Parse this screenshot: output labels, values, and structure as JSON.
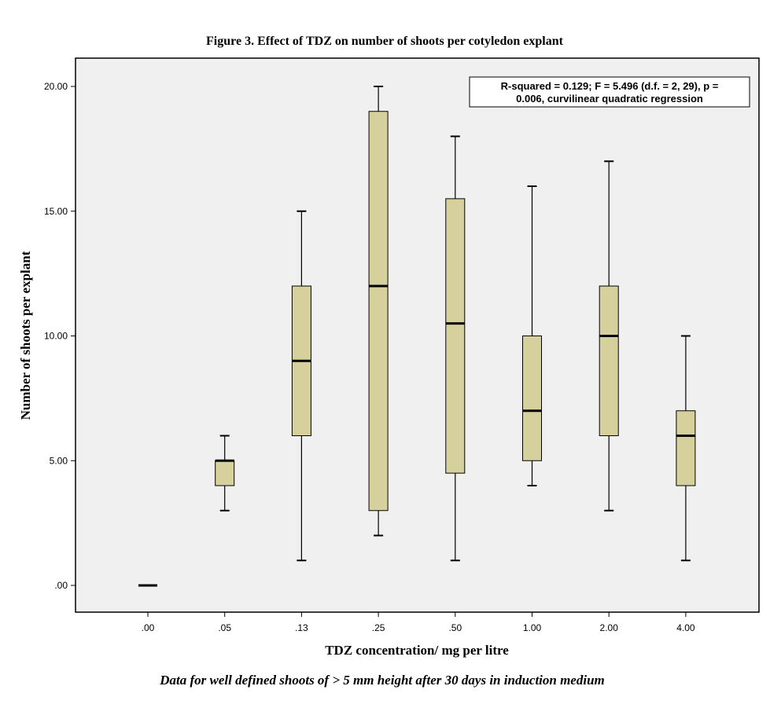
{
  "chart_data": {
    "type": "box",
    "title": "Figure 3. Effect of TDZ on number of shoots per cotyledon explant",
    "xlabel": "TDZ concentration/ mg per litre",
    "ylabel": "Number of shoots per explant",
    "caption": "Data for well defined shoots of > 5 mm height after 30 days in induction medium",
    "annotation": {
      "line1": "R-squared = 0.129; F = 5.496 (d.f. = 2, 29), p =",
      "line2": "0.006, curvilinear quadratic regression"
    },
    "ylim": [
      0,
      20
    ],
    "yticks": [
      {
        "value": 0,
        "label": ".00"
      },
      {
        "value": 5,
        "label": "5.00"
      },
      {
        "value": 10,
        "label": "10.00"
      },
      {
        "value": 15,
        "label": "15.00"
      },
      {
        "value": 20,
        "label": "20.00"
      }
    ],
    "categories": [
      ".00",
      ".05",
      ".13",
      ".25",
      ".50",
      "1.00",
      "2.00",
      "4.00"
    ],
    "boxes": [
      {
        "min": 0,
        "q1": 0,
        "median": 0,
        "q3": 0,
        "max": 0
      },
      {
        "min": 3,
        "q1": 4,
        "median": 5,
        "q3": 5,
        "max": 6
      },
      {
        "min": 1,
        "q1": 6,
        "median": 9,
        "q3": 12,
        "max": 15
      },
      {
        "min": 2,
        "q1": 3,
        "median": 12,
        "q3": 19,
        "max": 20
      },
      {
        "min": 1,
        "q1": 4.5,
        "median": 10.5,
        "q3": 15.5,
        "max": 18
      },
      {
        "min": 4,
        "q1": 5,
        "median": 7,
        "q3": 10,
        "max": 16
      },
      {
        "min": 3,
        "q1": 6,
        "median": 10,
        "q3": 12,
        "max": 17
      },
      {
        "min": 1,
        "q1": 4,
        "median": 6,
        "q3": 7,
        "max": 10
      }
    ],
    "colors": {
      "box_fill": "#d5d09c",
      "plot_background": "#f0f0f0",
      "stroke": "#000000"
    }
  }
}
